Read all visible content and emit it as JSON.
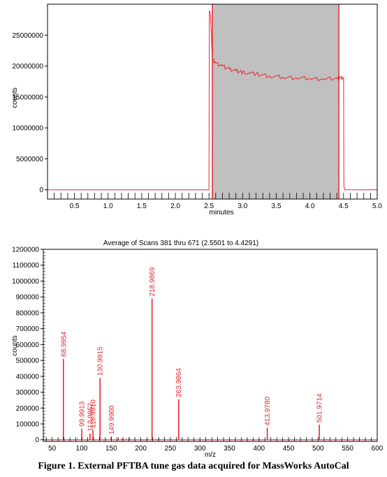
{
  "chart_data": [
    {
      "type": "line",
      "title": "",
      "xlabel": "minutes",
      "ylabel": "counts",
      "xlim": [
        0.1,
        5.0
      ],
      "ylim": [
        -1500000,
        30000000
      ],
      "x_ticks": [
        "0.5",
        "1.0",
        "1.5",
        "2.0",
        "2.5",
        "3.0",
        "3.5",
        "4.0",
        "4.5",
        "5.0"
      ],
      "y_ticks": [
        "0",
        "5000000",
        "10000000",
        "15000000",
        "20000000",
        "25000000"
      ],
      "shaded_region": [
        2.55,
        4.43
      ],
      "series_color": "#e8262b",
      "shade_color": "#c0c0c0",
      "series": [
        {
          "x": [
            0.1,
            2.5,
            2.505,
            2.52,
            2.55,
            2.6,
            2.7,
            2.8,
            2.9,
            3.0,
            3.2,
            3.4,
            3.6,
            3.8,
            4.0,
            4.2,
            4.4,
            4.45,
            4.5,
            4.505,
            4.52,
            5.0
          ],
          "y": [
            0,
            0,
            29000000,
            28500000,
            21000000,
            20500000,
            20000000,
            19500000,
            19200000,
            19000000,
            18700000,
            18400000,
            18200000,
            18100000,
            18000000,
            17900000,
            18000000,
            18100000,
            18000000,
            500000,
            0,
            0
          ]
        }
      ]
    },
    {
      "type": "bar",
      "title": "Average of Scans 381 thru 671 (2.5501 to 4.4291)",
      "xlabel": "m/z",
      "ylabel": "counts",
      "xlim": [
        35,
        600
      ],
      "ylim": [
        -10000,
        1200000
      ],
      "x_ticks": [
        "50",
        "100",
        "150",
        "200",
        "250",
        "300",
        "350",
        "400",
        "450",
        "500",
        "550",
        "600"
      ],
      "y_ticks": [
        "0",
        "100000",
        "200000",
        "300000",
        "400000",
        "500000",
        "600000",
        "700000",
        "800000",
        "900000",
        "1000000",
        "1100000",
        "1200000"
      ],
      "series_color": "#e8262b",
      "peaks": [
        {
          "mz": 68.9954,
          "value": 510000,
          "label": "68.9954"
        },
        {
          "mz": 99.9913,
          "value": 70000,
          "label": "99.9913"
        },
        {
          "mz": 113.9952,
          "value": 40000,
          "label": "113.9952"
        },
        {
          "mz": 118.991,
          "value": 60000,
          "label": "118.9910"
        },
        {
          "mz": 130.9915,
          "value": 390000,
          "label": "130.9915"
        },
        {
          "mz": 149.99,
          "value": 20000,
          "label": "149.9900"
        },
        {
          "mz": 218.9869,
          "value": 890000,
          "label": "218.9869"
        },
        {
          "mz": 263.9864,
          "value": 255000,
          "label": "263.9864"
        },
        {
          "mz": 413.978,
          "value": 75000,
          "label": "413.9780"
        },
        {
          "mz": 501.9714,
          "value": 95000,
          "label": "501.9714"
        }
      ],
      "minor_peaks": [
        {
          "mz": 80,
          "value": 6000
        },
        {
          "mz": 93,
          "value": 8000
        },
        {
          "mz": 162,
          "value": 15000
        },
        {
          "mz": 168,
          "value": 9000
        },
        {
          "mz": 175,
          "value": 8000
        },
        {
          "mz": 181,
          "value": 12000
        },
        {
          "mz": 212,
          "value": 7000
        },
        {
          "mz": 225,
          "value": 6000
        },
        {
          "mz": 231,
          "value": 9000
        },
        {
          "mz": 314,
          "value": 5000
        },
        {
          "mz": 426,
          "value": 4000
        },
        {
          "mz": 464,
          "value": 5000
        },
        {
          "mz": 514,
          "value": 6000
        }
      ]
    }
  ],
  "caption": "Figure 1. External PFTBA tune gas data acquired for MassWorks AutoCal"
}
